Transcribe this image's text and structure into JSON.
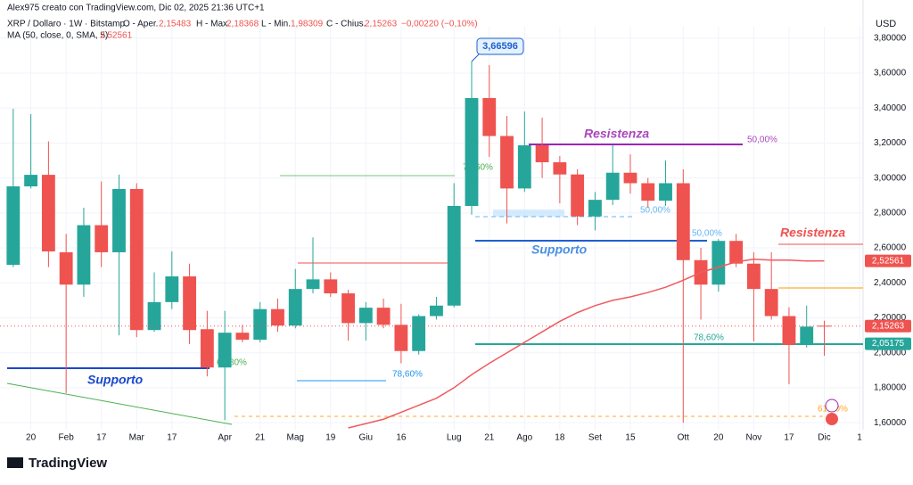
{
  "header": {
    "author": "Alex975 creato con TradingView.com, Dic 02, 2025 21:36 UTC+1",
    "symbol": "XRP / Dollaro · 1W · Bitstamp",
    "open_label": "O - Aper.",
    "open": "2,15483",
    "high_label": "H - Max.",
    "high": "2,18368",
    "low_label": "L - Min.",
    "low": "1,98309",
    "close_label": "C - Chius.",
    "close": "2,15263",
    "change": "−0,00220 (−0,10%)",
    "ma_label": "MA (50, close, 0, SMA, 5)",
    "ma_value": "2,52561"
  },
  "chart_data": {
    "type": "candlestick",
    "currency": "USD",
    "up_color": "#26a69a",
    "down_color": "#ef5350",
    "ma_color": "#f05a5f",
    "ylim": [
      1.56,
      3.865
    ],
    "xlim": [
      -0.75,
      48.2
    ],
    "yticks": [
      {
        "value": 1.6,
        "label": "1,60000"
      },
      {
        "value": 1.8,
        "label": "1,80000"
      },
      {
        "value": 2.0,
        "label": "2,00000"
      },
      {
        "value": 2.2,
        "label": "2,20000"
      },
      {
        "value": 2.4,
        "label": "2,40000"
      },
      {
        "value": 2.6,
        "label": "2,60000"
      },
      {
        "value": 2.8,
        "label": "2,80000"
      },
      {
        "value": 3.0,
        "label": "3,00000"
      },
      {
        "value": 3.2,
        "label": "3,20000"
      },
      {
        "value": 3.4,
        "label": "3,40000"
      },
      {
        "value": 3.6,
        "label": "3,60000"
      },
      {
        "value": 3.8,
        "label": "3,80000"
      }
    ],
    "xticks": [
      {
        "value": 1,
        "label": "20"
      },
      {
        "value": 3,
        "label": "Feb"
      },
      {
        "value": 5,
        "label": "17"
      },
      {
        "value": 7,
        "label": "Mar"
      },
      {
        "value": 9,
        "label": "17"
      },
      {
        "value": 12,
        "label": "Apr"
      },
      {
        "value": 14,
        "label": "21"
      },
      {
        "value": 16,
        "label": "Mag"
      },
      {
        "value": 18,
        "label": "19"
      },
      {
        "value": 20,
        "label": "Giu"
      },
      {
        "value": 22,
        "label": "16"
      },
      {
        "value": 25,
        "label": "Lug"
      },
      {
        "value": 27,
        "label": "21"
      },
      {
        "value": 29,
        "label": "Ago"
      },
      {
        "value": 31,
        "label": "18"
      },
      {
        "value": 33,
        "label": "Set"
      },
      {
        "value": 35,
        "label": "15"
      },
      {
        "value": 38,
        "label": "Ott"
      },
      {
        "value": 40,
        "label": "20"
      },
      {
        "value": 42,
        "label": "Nov"
      },
      {
        "value": 44,
        "label": "17"
      },
      {
        "value": 46,
        "label": "Dic"
      },
      {
        "value": 48,
        "label": "1"
      }
    ],
    "candles": [
      {
        "open": 2.503,
        "high": 3.396,
        "low": 2.49,
        "close": 2.952
      },
      {
        "open": 2.952,
        "high": 3.365,
        "low": 2.94,
        "close": 3.018
      },
      {
        "open": 3.018,
        "high": 3.21,
        "low": 2.49,
        "close": 2.58
      },
      {
        "open": 2.575,
        "high": 2.68,
        "low": 1.77,
        "close": 2.39
      },
      {
        "open": 2.39,
        "high": 2.83,
        "low": 2.32,
        "close": 2.73
      },
      {
        "open": 2.73,
        "high": 2.98,
        "low": 2.49,
        "close": 2.575
      },
      {
        "open": 2.575,
        "high": 3.02,
        "low": 2.1,
        "close": 2.937
      },
      {
        "open": 2.937,
        "high": 2.97,
        "low": 2.09,
        "close": 2.13
      },
      {
        "open": 2.13,
        "high": 2.46,
        "low": 2.12,
        "close": 2.29
      },
      {
        "open": 2.29,
        "high": 2.58,
        "low": 2.25,
        "close": 2.437
      },
      {
        "open": 2.437,
        "high": 2.51,
        "low": 2.05,
        "close": 2.13
      },
      {
        "open": 2.135,
        "high": 2.24,
        "low": 1.865,
        "close": 1.916
      },
      {
        "open": 1.916,
        "high": 2.24,
        "low": 1.615,
        "close": 2.115
      },
      {
        "open": 2.115,
        "high": 2.16,
        "low": 2.06,
        "close": 2.075
      },
      {
        "open": 2.075,
        "high": 2.29,
        "low": 2.06,
        "close": 2.25
      },
      {
        "open": 2.25,
        "high": 2.31,
        "low": 2.12,
        "close": 2.156
      },
      {
        "open": 2.156,
        "high": 2.48,
        "low": 2.14,
        "close": 2.365
      },
      {
        "open": 2.365,
        "high": 2.66,
        "low": 2.34,
        "close": 2.42
      },
      {
        "open": 2.42,
        "high": 2.46,
        "low": 2.32,
        "close": 2.34
      },
      {
        "open": 2.34,
        "high": 2.36,
        "low": 2.07,
        "close": 2.17
      },
      {
        "open": 2.17,
        "high": 2.29,
        "low": 2.07,
        "close": 2.258
      },
      {
        "open": 2.258,
        "high": 2.31,
        "low": 2.14,
        "close": 2.16
      },
      {
        "open": 2.16,
        "high": 2.28,
        "low": 1.94,
        "close": 2.01
      },
      {
        "open": 2.01,
        "high": 2.22,
        "low": 1.99,
        "close": 2.21
      },
      {
        "open": 2.21,
        "high": 2.32,
        "low": 2.19,
        "close": 2.27
      },
      {
        "open": 2.27,
        "high": 2.97,
        "low": 2.26,
        "close": 2.84
      },
      {
        "open": 2.84,
        "high": 3.66596,
        "low": 2.79,
        "close": 3.457
      },
      {
        "open": 3.457,
        "high": 3.646,
        "low": 3.12,
        "close": 3.24
      },
      {
        "open": 3.24,
        "high": 3.355,
        "low": 2.74,
        "close": 2.94
      },
      {
        "open": 2.94,
        "high": 3.38,
        "low": 2.92,
        "close": 3.187
      },
      {
        "open": 3.187,
        "high": 3.345,
        "low": 3.0,
        "close": 3.09
      },
      {
        "open": 3.09,
        "high": 3.125,
        "low": 2.855,
        "close": 3.02
      },
      {
        "open": 3.02,
        "high": 3.05,
        "low": 2.73,
        "close": 2.78
      },
      {
        "open": 2.78,
        "high": 2.92,
        "low": 2.7,
        "close": 2.875
      },
      {
        "open": 2.875,
        "high": 3.187,
        "low": 2.845,
        "close": 3.03
      },
      {
        "open": 3.03,
        "high": 3.135,
        "low": 2.91,
        "close": 2.97
      },
      {
        "open": 2.97,
        "high": 3.0,
        "low": 2.83,
        "close": 2.87
      },
      {
        "open": 2.87,
        "high": 3.1,
        "low": 2.84,
        "close": 2.97
      },
      {
        "open": 2.97,
        "high": 3.05,
        "low": 1.6,
        "close": 2.53
      },
      {
        "open": 2.53,
        "high": 2.6,
        "low": 2.19,
        "close": 2.39
      },
      {
        "open": 2.39,
        "high": 2.65,
        "low": 2.35,
        "close": 2.64
      },
      {
        "open": 2.64,
        "high": 2.68,
        "low": 2.49,
        "close": 2.51
      },
      {
        "open": 2.51,
        "high": 2.575,
        "low": 2.065,
        "close": 2.365
      },
      {
        "open": 2.365,
        "high": 2.575,
        "low": 2.19,
        "close": 2.21
      },
      {
        "open": 2.21,
        "high": 2.26,
        "low": 1.82,
        "close": 2.045
      },
      {
        "open": 2.045,
        "high": 2.27,
        "low": 2.03,
        "close": 2.15
      },
      {
        "open": 2.15483,
        "high": 2.18368,
        "low": 1.98309,
        "close": 2.15263
      }
    ],
    "ma_values": [
      null,
      null,
      null,
      null,
      null,
      null,
      null,
      null,
      null,
      null,
      null,
      null,
      null,
      null,
      null,
      null,
      null,
      null,
      null,
      1.57,
      1.595,
      1.62,
      1.66,
      1.7,
      1.74,
      1.8,
      1.875,
      1.94,
      2.0,
      2.06,
      2.12,
      2.18,
      2.23,
      2.27,
      2.3,
      2.32,
      2.345,
      2.375,
      2.415,
      2.46,
      2.49,
      2.52,
      2.535,
      2.53,
      2.53,
      2.525,
      2.52561
    ],
    "price_tags": [
      {
        "value": 2.52561,
        "label": "2,52561",
        "color": "#ef5350"
      },
      {
        "value": 2.15263,
        "label": "2,15263",
        "color": "#ef5350"
      },
      {
        "value": 2.05175,
        "label": "2,05175",
        "color": "#26a69a"
      }
    ],
    "callout": {
      "value": 3.66596,
      "label": "3,66596"
    },
    "annotations": [
      "Supporto",
      "Resistenza",
      "Supporto",
      "Resistenza",
      "50,00%",
      "50,00%",
      "50,00%",
      "78,60%",
      "78,60%",
      "78,60%",
      "61,80%",
      "61,80%"
    ]
  },
  "footer": {
    "brand": "TradingView"
  }
}
